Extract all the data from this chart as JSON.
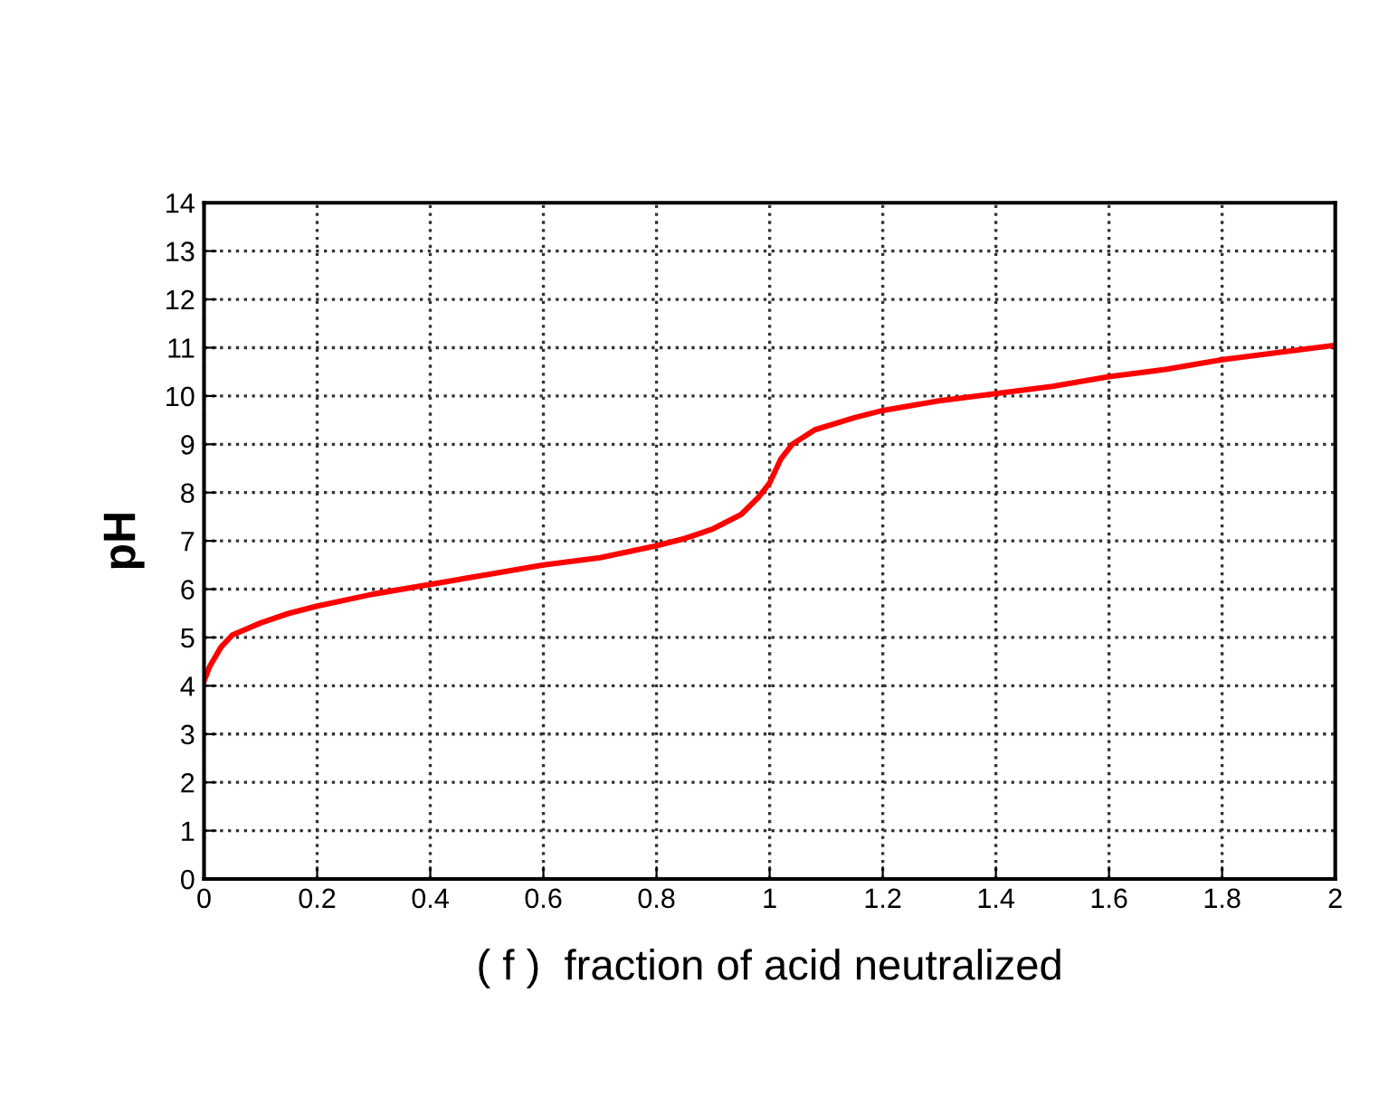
{
  "chart_data": {
    "type": "line",
    "xlabel": "( f )  fraction of acid neutralized",
    "ylabel": "pH",
    "x": [
      0,
      0.01,
      0.03,
      0.05,
      0.1,
      0.15,
      0.2,
      0.3,
      0.4,
      0.5,
      0.6,
      0.7,
      0.8,
      0.85,
      0.9,
      0.95,
      0.98,
      1.0,
      1.02,
      1.04,
      1.08,
      1.15,
      1.2,
      1.3,
      1.4,
      1.5,
      1.6,
      1.7,
      1.8,
      1.9,
      2.0
    ],
    "series": [
      {
        "color": "#ff0000",
        "values": [
          4.1,
          4.4,
          4.8,
          5.05,
          5.3,
          5.5,
          5.65,
          5.9,
          6.1,
          6.3,
          6.5,
          6.65,
          6.9,
          7.05,
          7.25,
          7.55,
          7.9,
          8.2,
          8.7,
          9.0,
          9.3,
          9.55,
          9.7,
          9.9,
          10.05,
          10.2,
          10.4,
          10.55,
          10.75,
          10.9,
          11.05
        ]
      }
    ],
    "xlim": [
      0,
      2
    ],
    "ylim": [
      0,
      14
    ],
    "xticks": [
      0,
      0.2,
      0.4,
      0.6,
      0.8,
      1,
      1.2,
      1.4,
      1.6,
      1.8,
      2
    ],
    "yticks": [
      0,
      1,
      2,
      3,
      4,
      5,
      6,
      7,
      8,
      9,
      10,
      11,
      12,
      13,
      14
    ],
    "grid": true,
    "marker": "none",
    "line_style": "solid"
  }
}
